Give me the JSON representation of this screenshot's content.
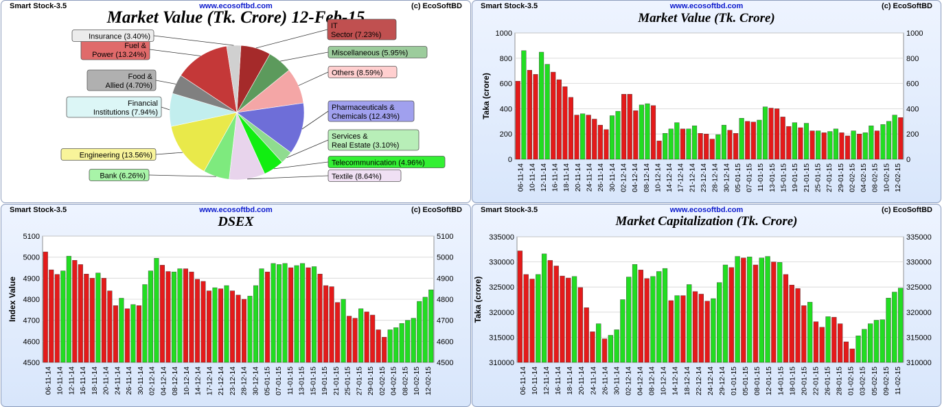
{
  "app_name": "Smart Stock-3.5",
  "website": "www.ecosoftbd.com",
  "copyright": "(c) EcoSoftBD",
  "colors": {
    "up": "#22dd22",
    "down": "#e41a1a",
    "header_link": "#0a18cc",
    "panel_bg": "#dbe8fc"
  },
  "pie": {
    "title": "Market Value (Tk. Crore) 12-Feb-15",
    "chart_data": {
      "type": "pie",
      "title": "Market Value (Tk. Crore) 12-Feb-15",
      "slices": [
        {
          "label_lines": [
            "IT",
            "Sector (7.23%)"
          ],
          "name": "IT Sector",
          "percent": 7.23,
          "color": "#a52a2a",
          "box_color": "#c05050"
        },
        {
          "label_lines": [
            "Miscellaneous (5.95%)"
          ],
          "name": "Miscellaneous",
          "percent": 5.95,
          "color": "#5c9a5c",
          "box_color": "#9ccc9c"
        },
        {
          "label_lines": [
            "Others (8.59%)"
          ],
          "name": "Others",
          "percent": 8.59,
          "color": "#f4a6a6",
          "box_color": "#ffcfcf"
        },
        {
          "label_lines": [
            "Pharmaceuticals &",
            "Chemicals (12.43%)"
          ],
          "name": "Pharmaceuticals & Chemicals",
          "percent": 12.43,
          "color": "#6e6ed8",
          "box_color": "#a0a0ee"
        },
        {
          "label_lines": [
            "Services &",
            "Real Estate (3.10%)"
          ],
          "name": "Services & Real Estate",
          "percent": 3.1,
          "color": "#8fdc8f",
          "box_color": "#b8eeb8"
        },
        {
          "label_lines": [
            "Telecommunication (4.96%)"
          ],
          "name": "Telecommunication",
          "percent": 4.96,
          "color": "#11ee11",
          "box_color": "#33f033"
        },
        {
          "label_lines": [
            "Textile (8.64%)"
          ],
          "name": "Textile",
          "percent": 8.64,
          "color": "#e8d4ec",
          "box_color": "#f0e0f4"
        },
        {
          "label_lines": [
            "Bank (6.26%)"
          ],
          "name": "Bank",
          "percent": 6.26,
          "color": "#7eea7e",
          "box_color": "#a8f4a8"
        },
        {
          "label_lines": [
            "Engineering (13.56%)"
          ],
          "name": "Engineering",
          "percent": 13.56,
          "color": "#e9e94a",
          "box_color": "#f8f49a"
        },
        {
          "label_lines": [
            "Financial",
            "Institutions (7.94%)"
          ],
          "name": "Financial Institutions",
          "percent": 7.94,
          "color": "#c2eeee",
          "box_color": "#dcf6f6"
        },
        {
          "label_lines": [
            "Food &",
            "Allied (4.70%)"
          ],
          "name": "Food & Allied",
          "percent": 4.7,
          "color": "#808080",
          "box_color": "#b0b0b0"
        },
        {
          "label_lines": [
            "Fuel &",
            "Power (13.24%)"
          ],
          "name": "Fuel & Power",
          "percent": 13.24,
          "color": "#c43838",
          "box_color": "#e06a6a"
        },
        {
          "label_lines": [
            "Insurance (3.40%)"
          ],
          "name": "Insurance",
          "percent": 3.4,
          "color": "#d0d0d0",
          "box_color": "#ececec"
        }
      ]
    }
  },
  "market_value": {
    "title": "Market Value (Tk. Crore)",
    "chart_data": {
      "type": "bar",
      "title": "Market Value (Tk. Crore)",
      "ylabel": "Taka (crore)",
      "ylim": [
        0,
        1000
      ],
      "yticks": [
        0,
        200,
        400,
        600,
        800,
        1000
      ],
      "tick_labels": [
        "06-11-14",
        "10-11-14",
        "12-11-14",
        "16-11-14",
        "18-11-14",
        "20-11-14",
        "24-11-14",
        "26-11-14",
        "30-11-14",
        "02-12-14",
        "04-12-14",
        "08-12-14",
        "10-12-14",
        "14-12-14",
        "17-12-14",
        "21-12-14",
        "23-12-14",
        "28-12-14",
        "30-12-14",
        "05-01-15",
        "07-01-15",
        "11-01-15",
        "13-01-15",
        "15-01-15",
        "19-01-15",
        "21-01-15",
        "25-01-15",
        "27-01-15",
        "29-01-15",
        "02-02-15",
        "04-02-15",
        "08-02-15",
        "10-02-15",
        "12-02-15"
      ],
      "values": [
        618,
        860,
        705,
        672,
        848,
        752,
        690,
        630,
        575,
        490,
        350,
        360,
        350,
        318,
        270,
        235,
        345,
        380,
        515,
        515,
        385,
        430,
        440,
        425,
        145,
        205,
        240,
        290,
        240,
        240,
        265,
        205,
        200,
        160,
        195,
        270,
        230,
        205,
        325,
        300,
        295,
        310,
        415,
        405,
        400,
        335,
        260,
        290,
        250,
        285,
        225,
        225,
        210,
        220,
        240,
        210,
        185,
        225,
        200,
        210,
        265,
        225,
        275,
        300,
        350,
        330
      ],
      "direction": [
        "d",
        "u",
        "d",
        "d",
        "u",
        "u",
        "d",
        "d",
        "d",
        "d",
        "d",
        "u",
        "d",
        "d",
        "d",
        "d",
        "u",
        "u",
        "d",
        "d",
        "d",
        "u",
        "u",
        "d",
        "d",
        "u",
        "u",
        "u",
        "d",
        "u",
        "u",
        "d",
        "d",
        "d",
        "u",
        "u",
        "d",
        "d",
        "u",
        "d",
        "d",
        "u",
        "u",
        "d",
        "d",
        "d",
        "d",
        "u",
        "d",
        "u",
        "d",
        "u",
        "d",
        "u",
        "u",
        "d",
        "d",
        "u",
        "d",
        "u",
        "u",
        "d",
        "u",
        "u",
        "u",
        "d"
      ]
    }
  },
  "dsex": {
    "title": "DSEX",
    "chart_data": {
      "type": "bar",
      "title": "DSEX",
      "ylabel": "Index Value",
      "ylim": [
        4500,
        5100
      ],
      "yticks": [
        4500,
        4600,
        4700,
        4800,
        4900,
        5000,
        5100
      ],
      "tick_labels": [
        "06-11-14",
        "10-11-14",
        "12-11-14",
        "16-11-14",
        "18-11-14",
        "20-11-14",
        "24-11-14",
        "26-11-14",
        "30-11-14",
        "02-12-14",
        "04-12-14",
        "08-12-14",
        "10-12-14",
        "14-12-14",
        "17-12-14",
        "21-12-14",
        "23-12-14",
        "28-12-14",
        "30-12-14",
        "05-01-15",
        "07-01-15",
        "11-01-15",
        "13-01-15",
        "15-01-15",
        "19-01-15",
        "21-01-15",
        "25-01-15",
        "27-01-15",
        "29-01-15",
        "02-02-15",
        "04-02-15",
        "08-02-15",
        "10-02-15",
        "12-02-15"
      ],
      "values": [
        5025,
        4940,
        4918,
        4935,
        5005,
        4985,
        4965,
        4920,
        4900,
        4925,
        4900,
        4840,
        4770,
        4805,
        4755,
        4775,
        4770,
        4870,
        4935,
        4995,
        4962,
        4932,
        4930,
        4945,
        4945,
        4930,
        4895,
        4885,
        4840,
        4855,
        4850,
        4865,
        4840,
        4820,
        4800,
        4815,
        4865,
        4945,
        4930,
        4970,
        4965,
        4970,
        4950,
        4960,
        4970,
        4950,
        4955,
        4920,
        4865,
        4860,
        4785,
        4800,
        4720,
        4710,
        4755,
        4740,
        4725,
        4655,
        4620,
        4655,
        4665,
        4685,
        4700,
        4710,
        4790,
        4810,
        4845
      ],
      "direction": [
        "d",
        "d",
        "d",
        "u",
        "u",
        "d",
        "d",
        "d",
        "d",
        "u",
        "d",
        "d",
        "d",
        "u",
        "d",
        "u",
        "d",
        "u",
        "u",
        "u",
        "d",
        "d",
        "u",
        "u",
        "d",
        "d",
        "d",
        "d",
        "d",
        "u",
        "d",
        "u",
        "d",
        "d",
        "d",
        "u",
        "u",
        "u",
        "d",
        "u",
        "u",
        "u",
        "d",
        "u",
        "u",
        "d",
        "u",
        "d",
        "d",
        "d",
        "d",
        "u",
        "d",
        "d",
        "u",
        "d",
        "d",
        "d",
        "d",
        "u",
        "u",
        "u",
        "u",
        "u",
        "u",
        "u",
        "u"
      ]
    }
  },
  "market_cap": {
    "title": "Market Capitalization (Tk. Crore)",
    "chart_data": {
      "type": "bar",
      "title": "Market Capitalization (Tk. Crore)",
      "ylabel": "Taka (crore)",
      "ylim": [
        310000,
        335000
      ],
      "yticks": [
        310000,
        315000,
        320000,
        325000,
        330000,
        335000
      ],
      "tick_labels": [
        "06-11-14",
        "10-11-14",
        "12-11-14",
        "16-11-14",
        "18-11-14",
        "20-11-14",
        "24-11-14",
        "26-11-14",
        "30-11-14",
        "02-12-14",
        "04-12-14",
        "08-12-14",
        "10-12-14",
        "14-12-14",
        "18-12-14",
        "22-12-14",
        "24-12-14",
        "29-12-14",
        "01-01-15",
        "05-01-15",
        "08-01-15",
        "12-01-15",
        "14-01-15",
        "18-01-15",
        "20-01-15",
        "22-01-15",
        "26-01-15",
        "28-01-15",
        "01-02-15",
        "03-02-15",
        "05-02-15",
        "09-02-15",
        "11-02-15"
      ],
      "values": [
        332200,
        327500,
        326600,
        327500,
        331600,
        330300,
        329200,
        327200,
        326800,
        327100,
        324900,
        320900,
        316100,
        317700,
        314700,
        315400,
        316500,
        322500,
        327000,
        329500,
        328400,
        326700,
        327100,
        328100,
        328700,
        322300,
        323300,
        323300,
        325500,
        324100,
        323600,
        322200,
        322700,
        325900,
        329400,
        328900,
        331100,
        330800,
        331000,
        329400,
        330800,
        331100,
        330000,
        329900,
        327500,
        325400,
        324700,
        321300,
        322000,
        318100,
        317000,
        319100,
        319000,
        317700,
        314100,
        312700,
        315300,
        316600,
        317700,
        318400,
        318500,
        322800,
        324000,
        324800
      ],
      "direction": [
        "d",
        "d",
        "d",
        "u",
        "u",
        "d",
        "d",
        "d",
        "d",
        "u",
        "d",
        "d",
        "d",
        "u",
        "d",
        "u",
        "u",
        "u",
        "u",
        "u",
        "d",
        "d",
        "u",
        "u",
        "u",
        "d",
        "u",
        "d",
        "u",
        "d",
        "d",
        "d",
        "u",
        "u",
        "u",
        "d",
        "u",
        "d",
        "u",
        "d",
        "u",
        "u",
        "d",
        "u",
        "d",
        "d",
        "d",
        "d",
        "u",
        "d",
        "d",
        "u",
        "d",
        "d",
        "d",
        "d",
        "u",
        "u",
        "u",
        "u",
        "u",
        "u",
        "u",
        "u"
      ]
    }
  }
}
